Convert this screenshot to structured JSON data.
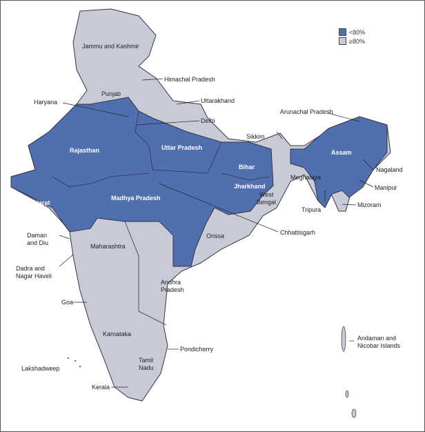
{
  "colors": {
    "below": "#4f6fae",
    "above": "#c9cad8",
    "border": "#333344"
  },
  "legend": [
    {
      "label": "<80%",
      "color": "#4f6fae"
    },
    {
      "label": "≥80%",
      "color": "#c9cad8"
    }
  ],
  "states": {
    "jk": "Jammu and Kashmir",
    "hp": "Himachal Pradesh",
    "punjab": "Punjab",
    "uk": "Uttarakhand",
    "haryana": "Haryana",
    "delhi": "Delhi",
    "raj": "Rajasthan",
    "up": "Uttar Pradesh",
    "bihar": "Bihar",
    "sikkim": "Sikkim",
    "arunachal": "Arunachal Pradesh",
    "assam": "Assam",
    "nagaland": "Nagaland",
    "meghalaya": "Meghalaya",
    "manipur": "Manipur",
    "mizoram": "Mizoram",
    "tripura": "Tripura",
    "jharkhand": "Jharkhand",
    "wb1": "West",
    "wb2": "Bengal",
    "gujarat": "Gujarat",
    "mp": "Madhya Pradesh",
    "chh": "Chhattisgarh",
    "orissa": "Orissa",
    "dd1": "Daman",
    "dd2": "and Diu",
    "dnh1": "Dadra and",
    "dnh2": "Nagar Haveli",
    "maha": "Maharashtra",
    "ap1": "Andhra",
    "ap2": "Pradesh",
    "goa": "Goa",
    "karnataka": "Karnataka",
    "tn1": "Tamil",
    "tn2": "Nadu",
    "pondy": "Pondicherry",
    "kerala": "Kerala",
    "laksh": "Lakshadweep",
    "an1": "Andaman and",
    "an2": "Nicobar Islands"
  }
}
